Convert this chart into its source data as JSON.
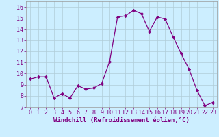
{
  "x": [
    0,
    1,
    2,
    3,
    4,
    5,
    6,
    7,
    8,
    9,
    10,
    11,
    12,
    13,
    14,
    15,
    16,
    17,
    18,
    19,
    20,
    21,
    22,
    23
  ],
  "y": [
    9.5,
    9.7,
    9.7,
    7.8,
    8.2,
    7.8,
    8.9,
    8.6,
    8.7,
    9.1,
    11.1,
    15.1,
    15.2,
    15.7,
    15.4,
    13.8,
    15.1,
    14.9,
    13.3,
    11.8,
    10.4,
    8.5,
    7.1,
    7.4
  ],
  "line_color": "#800080",
  "marker": "D",
  "marker_size": 2.2,
  "bg_color": "#cceeff",
  "grid_color": "#b0ccd8",
  "xlabel": "Windchill (Refroidissement éolien,°C)",
  "xlabel_fontsize": 6.5,
  "tick_fontsize": 6.0,
  "ylim": [
    7,
    16.5
  ],
  "yticks": [
    7,
    8,
    9,
    10,
    11,
    12,
    13,
    14,
    15,
    16
  ],
  "xticks": [
    0,
    1,
    2,
    3,
    4,
    5,
    6,
    7,
    8,
    9,
    10,
    11,
    12,
    13,
    14,
    15,
    16,
    17,
    18,
    19,
    20,
    21,
    22,
    23
  ],
  "xlim": [
    -0.5,
    23.5
  ]
}
